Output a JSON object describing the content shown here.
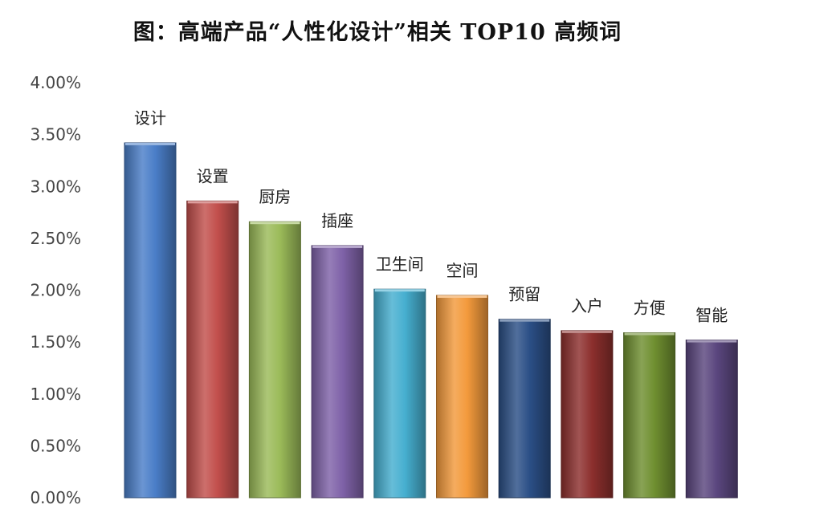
{
  "chart_data": {
    "type": "bar",
    "title": "图：高端产品“人性化设计”相关 TOP10 高频词",
    "xlabel": "",
    "ylabel": "",
    "categories": [
      "设计",
      "设置",
      "厨房",
      "插座",
      "卫生间",
      "空间",
      "预留",
      "入户",
      "方便",
      "智能"
    ],
    "values": [
      3.42,
      2.86,
      2.66,
      2.43,
      2.01,
      1.95,
      1.72,
      1.61,
      1.59,
      1.52
    ],
    "ylim": [
      0,
      4
    ],
    "yticks": [
      0,
      0.5,
      1,
      1.5,
      2,
      2.5,
      3,
      3.5,
      4
    ],
    "ytick_labels": [
      "0.00%",
      "0.50%",
      "1.00%",
      "1.50%",
      "2.00%",
      "2.50%",
      "3.00%",
      "3.50%",
      "4.00%"
    ],
    "grid": false,
    "legend": "none",
    "colors": [
      "#4a7ec8",
      "#c24f4c",
      "#9bbb59",
      "#7f62a8",
      "#46afd0",
      "#f39a3c",
      "#2b4f86",
      "#8c2f2d",
      "#6f8f30",
      "#5a467e"
    ]
  }
}
